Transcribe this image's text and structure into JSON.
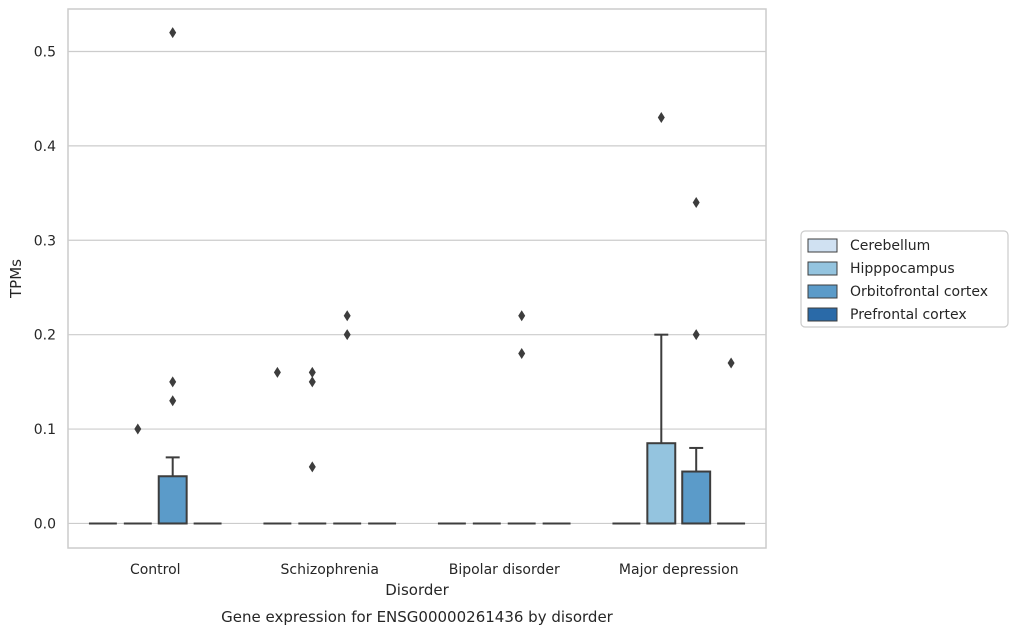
{
  "chart_data": {
    "type": "box",
    "title": "",
    "caption": "Gene expression for ENSG00000261436 by disorder",
    "xlabel": "Disorder",
    "ylabel": "TPMs",
    "ylim": [
      -0.026,
      0.545
    ],
    "yticks": [
      "0.0",
      "0.1",
      "0.2",
      "0.3",
      "0.4",
      "0.5"
    ],
    "grid": true,
    "legend_position": "right",
    "categories": [
      "Control",
      "Schizophrenia",
      "Bipolar disorder",
      "Major depression"
    ],
    "series": [
      {
        "name": "Cerebellum",
        "color": "#d0e1f2",
        "boxes": [
          {
            "category": "Control",
            "q1": 0,
            "median": 0,
            "q3": 0,
            "whisker_low": 0,
            "whisker_high": 0,
            "outliers": []
          },
          {
            "category": "Schizophrenia",
            "q1": 0,
            "median": 0,
            "q3": 0,
            "whisker_low": 0,
            "whisker_high": 0,
            "outliers": [
              0.16
            ]
          },
          {
            "category": "Bipolar disorder",
            "q1": 0,
            "median": 0,
            "q3": 0,
            "whisker_low": 0,
            "whisker_high": 0,
            "outliers": []
          },
          {
            "category": "Major depression",
            "q1": 0,
            "median": 0,
            "q3": 0,
            "whisker_low": 0,
            "whisker_high": 0,
            "outliers": []
          }
        ]
      },
      {
        "name": "Hipppocampus",
        "color": "#94c4df",
        "boxes": [
          {
            "category": "Control",
            "q1": 0,
            "median": 0,
            "q3": 0,
            "whisker_low": 0,
            "whisker_high": 0,
            "outliers": [
              0.1
            ]
          },
          {
            "category": "Schizophrenia",
            "q1": 0,
            "median": 0,
            "q3": 0,
            "whisker_low": 0,
            "whisker_high": 0,
            "outliers": [
              0.16,
              0.15,
              0.06
            ]
          },
          {
            "category": "Bipolar disorder",
            "q1": 0,
            "median": 0,
            "q3": 0,
            "whisker_low": 0,
            "whisker_high": 0,
            "outliers": []
          },
          {
            "category": "Major depression",
            "q1": 0,
            "median": 0,
            "q3": 0.085,
            "whisker_low": 0,
            "whisker_high": 0.2,
            "outliers": [
              0.43
            ]
          }
        ]
      },
      {
        "name": "Orbitofrontal cortex",
        "color": "#5b9bc9",
        "boxes": [
          {
            "category": "Control",
            "q1": 0,
            "median": 0,
            "q3": 0.05,
            "whisker_low": 0,
            "whisker_high": 0.07,
            "outliers": [
              0.52,
              0.15,
              0.13
            ]
          },
          {
            "category": "Schizophrenia",
            "q1": 0,
            "median": 0,
            "q3": 0,
            "whisker_low": 0,
            "whisker_high": 0,
            "outliers": [
              0.22,
              0.2
            ]
          },
          {
            "category": "Bipolar disorder",
            "q1": 0,
            "median": 0,
            "q3": 0,
            "whisker_low": 0,
            "whisker_high": 0,
            "outliers": [
              0.22,
              0.18
            ]
          },
          {
            "category": "Major depression",
            "q1": 0,
            "median": 0,
            "q3": 0.055,
            "whisker_low": 0,
            "whisker_high": 0.08,
            "outliers": [
              0.34,
              0.2
            ]
          }
        ]
      },
      {
        "name": "Prefrontal cortex",
        "color": "#2a6aa8",
        "boxes": [
          {
            "category": "Control",
            "q1": 0,
            "median": 0,
            "q3": 0,
            "whisker_low": 0,
            "whisker_high": 0,
            "outliers": []
          },
          {
            "category": "Schizophrenia",
            "q1": 0,
            "median": 0,
            "q3": 0,
            "whisker_low": 0,
            "whisker_high": 0,
            "outliers": []
          },
          {
            "category": "Bipolar disorder",
            "q1": 0,
            "median": 0,
            "q3": 0,
            "whisker_low": 0,
            "whisker_high": 0,
            "outliers": []
          },
          {
            "category": "Major depression",
            "q1": 0,
            "median": 0,
            "q3": 0,
            "whisker_low": 0,
            "whisker_high": 0,
            "outliers": [
              0.17
            ]
          }
        ]
      }
    ]
  }
}
